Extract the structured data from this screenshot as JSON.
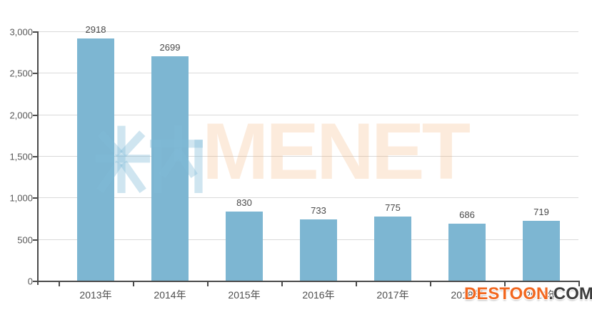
{
  "chart_data": {
    "type": "bar",
    "title": "",
    "xlabel": "",
    "ylabel": "",
    "categories": [
      "2013年",
      "2014年",
      "2015年",
      "2016年",
      "2017年",
      "2018年",
      "2019年"
    ],
    "values": [
      2918,
      2699,
      830,
      733,
      775,
      686,
      719
    ],
    "value_labels": [
      "2918",
      "2699",
      "830",
      "733",
      "775",
      "686",
      "719"
    ],
    "ylim": [
      0,
      3000
    ],
    "yticks": [
      0,
      500,
      1000,
      1500,
      2000,
      2500,
      3000
    ],
    "ytick_labels": [
      "0",
      "500",
      "1,000",
      "1,500",
      "2,000",
      "2,500",
      "3,000"
    ],
    "grid": true,
    "legend": null,
    "bar_color": "#7db6d2",
    "axis_color": "#4a4a4a",
    "gridline_color": "#d9d9d9"
  },
  "watermarks": {
    "minei_logo_icon": "minei-rice-logo (米内)",
    "menet_text": "MENET",
    "destoon_brand": "DESTOON",
    "destoon_suffix": ".COM",
    "destoon_brand_color": "#f2671f",
    "destoon_suffix_color": "#3d3d3d"
  }
}
